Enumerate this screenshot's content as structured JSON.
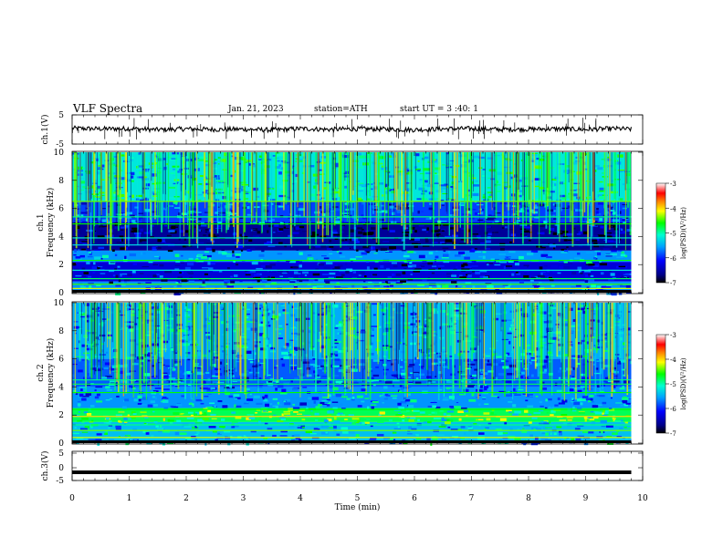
{
  "header": {
    "title": "VLF  Spectra",
    "date": "Jan. 21, 2023",
    "station": "station=ATH",
    "start": "start  UT  =   3  :40: 1"
  },
  "chart_data": [
    {
      "type": "line",
      "panel": "ch1-waveform",
      "ylabel": "ch.1(V)",
      "yticks": [
        "5",
        "-5"
      ],
      "ylim": [
        -5,
        5
      ],
      "xlim": [
        0,
        10
      ],
      "x": [
        0,
        0.5,
        1,
        1.5,
        2,
        2.5,
        3,
        3.5,
        4,
        4.5,
        5,
        5.5,
        6,
        6.5,
        7,
        7.5,
        8,
        8.5,
        9,
        9.5,
        9.8
      ],
      "values": [
        0.4,
        0.2,
        0.3,
        -0.1,
        0.2,
        0.0,
        0.1,
        -0.2,
        0.3,
        0.0,
        0.2,
        0.1,
        -0.1,
        0.2,
        0.3,
        0.0,
        0.1,
        0.2,
        0.0,
        0.3,
        0.1
      ]
    },
    {
      "type": "heatmap",
      "panel": "ch1-spectrogram",
      "ylabel": "ch.1\nFrequency (kHz)",
      "yticks": [
        "0",
        "2",
        "4",
        "6",
        "8",
        "10"
      ],
      "ylim": [
        0,
        10
      ],
      "xlim": [
        0,
        10
      ],
      "colorbar": {
        "label": "log(PSD)(V²/Hz)",
        "ticks": [
          "-3",
          "-4",
          "-5",
          "-6",
          "-7"
        ],
        "range": [
          -7,
          -3
        ]
      },
      "bands_khz": [
        {
          "from": 0.0,
          "to": 0.8,
          "level": -5.6
        },
        {
          "from": 0.8,
          "to": 2.2,
          "level": -6.3
        },
        {
          "from": 2.2,
          "to": 3.0,
          "level": -5.6
        },
        {
          "from": 3.0,
          "to": 5.0,
          "level": -6.6
        },
        {
          "from": 5.0,
          "to": 6.5,
          "level": -5.9
        },
        {
          "from": 6.5,
          "to": 10.0,
          "level": -5.2
        }
      ]
    },
    {
      "type": "heatmap",
      "panel": "ch2-spectrogram",
      "ylabel": "ch.2\nFrequency (kHz)",
      "yticks": [
        "0",
        "2",
        "4",
        "6",
        "8",
        "10"
      ],
      "ylim": [
        0,
        10
      ],
      "xlim": [
        0,
        10
      ],
      "colorbar": {
        "label": "log(PSD)(V²/Hz)",
        "ticks": [
          "-3",
          "-4",
          "-5",
          "-6",
          "-7"
        ],
        "range": [
          -7,
          -3
        ]
      },
      "bands_khz": [
        {
          "from": 0.0,
          "to": 1.5,
          "level": -5.4
        },
        {
          "from": 1.5,
          "to": 2.5,
          "level": -4.8
        },
        {
          "from": 2.5,
          "to": 4.0,
          "level": -5.6
        },
        {
          "from": 4.0,
          "to": 6.0,
          "level": -5.8
        },
        {
          "from": 6.0,
          "to": 10.0,
          "level": -5.5
        }
      ]
    },
    {
      "type": "line",
      "panel": "ch3-waveform",
      "ylabel": "ch.3(V)",
      "yticks": [
        "5",
        "0",
        "-5"
      ],
      "ylim": [
        -5,
        5
      ],
      "xlim": [
        0,
        10
      ],
      "x": [
        0,
        9.8
      ],
      "values": [
        -2.2,
        -2.2
      ]
    }
  ],
  "xaxis": {
    "label": "Time  (min)",
    "ticks": [
      "0",
      "1",
      "2",
      "3",
      "4",
      "5",
      "6",
      "7",
      "8",
      "9",
      "10"
    ]
  }
}
